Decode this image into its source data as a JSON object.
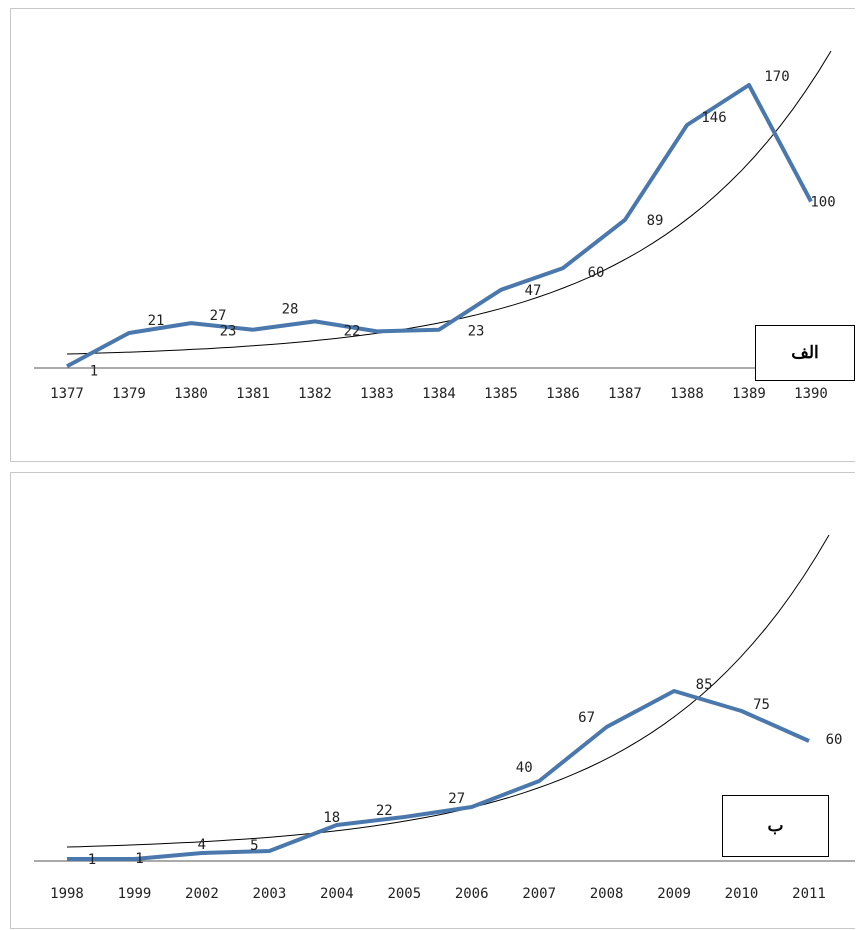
{
  "chart_data": [
    {
      "type": "line",
      "panel_label": "الف",
      "categories": [
        "1377",
        "1379",
        "1380",
        "1381",
        "1382",
        "1383",
        "1384",
        "1385",
        "1386",
        "1387",
        "1388",
        "1389",
        "1390"
      ],
      "series": [
        {
          "values": [
            1,
            21,
            27,
            23,
            28,
            22,
            23,
            47,
            60,
            89,
            146,
            170,
            100
          ],
          "color": "#4a78ad"
        }
      ],
      "trendline": {
        "type": "exponential",
        "color": "#000000"
      },
      "data_labels": [
        "1",
        "21",
        "27",
        "23",
        "28",
        "22",
        "23",
        "47",
        "60",
        "89",
        "146",
        "170",
        "100"
      ],
      "grid": false,
      "legend": "none"
    },
    {
      "type": "line",
      "panel_label": "ب",
      "categories": [
        "1998",
        "1999",
        "2002",
        "2003",
        "2004",
        "2005",
        "2006",
        "2007",
        "2008",
        "2009",
        "2010",
        "2011"
      ],
      "series": [
        {
          "values": [
            1,
            1,
            4,
            5,
            18,
            22,
            27,
            40,
            67,
            85,
            75,
            60
          ],
          "color": "#4a78ad"
        }
      ],
      "trendline": {
        "type": "exponential",
        "color": "#000000"
      },
      "data_labels": [
        "1",
        "1",
        "4",
        "5",
        "18",
        "22",
        "27",
        "40",
        "67",
        "85",
        "75",
        "60"
      ],
      "grid": false,
      "legend": "none"
    }
  ]
}
